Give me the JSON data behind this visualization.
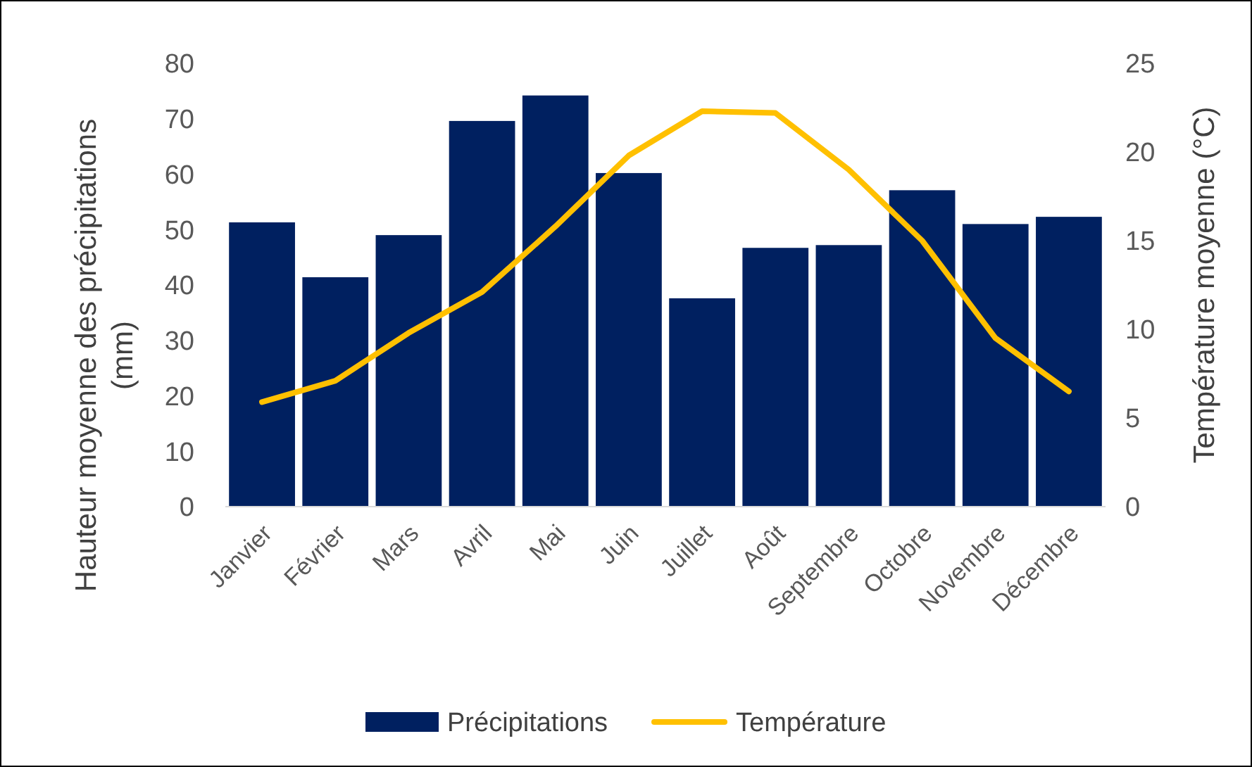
{
  "chart_data": {
    "type": "bar",
    "categories": [
      "Janvier",
      "Février",
      "Mars",
      "Avril",
      "Mai",
      "Juin",
      "Juillet",
      "Août",
      "Septembre",
      "Octobre",
      "Novembre",
      "Décembre"
    ],
    "series": [
      {
        "name": "Précipitations",
        "color": "#002060",
        "values": [
          51.3,
          41.4,
          49.0,
          69.6,
          74.2,
          60.2,
          37.6,
          46.7,
          47.2,
          57.1,
          51.0,
          52.3
        ]
      },
      {
        "name": "Température",
        "type": "line",
        "axis": "y2",
        "color": "#ffc000",
        "values": [
          5.9,
          7.1,
          9.8,
          12.1,
          15.8,
          19.8,
          22.3,
          22.2,
          19.0,
          15.0,
          9.5,
          6.5
        ]
      }
    ],
    "ylabel": "Hauteur moyenne des précipitations (mm)",
    "y2label": "Température moyenne (°C)",
    "ylim": [
      0,
      80
    ],
    "yticks": [
      0,
      10,
      20,
      30,
      40,
      50,
      60,
      70,
      80
    ],
    "y2lim": [
      0,
      25
    ],
    "y2ticks": [
      0,
      5,
      10,
      15,
      20,
      25
    ],
    "grid": false,
    "legend": "bottom",
    "marker": "none",
    "line_style": "solid"
  }
}
